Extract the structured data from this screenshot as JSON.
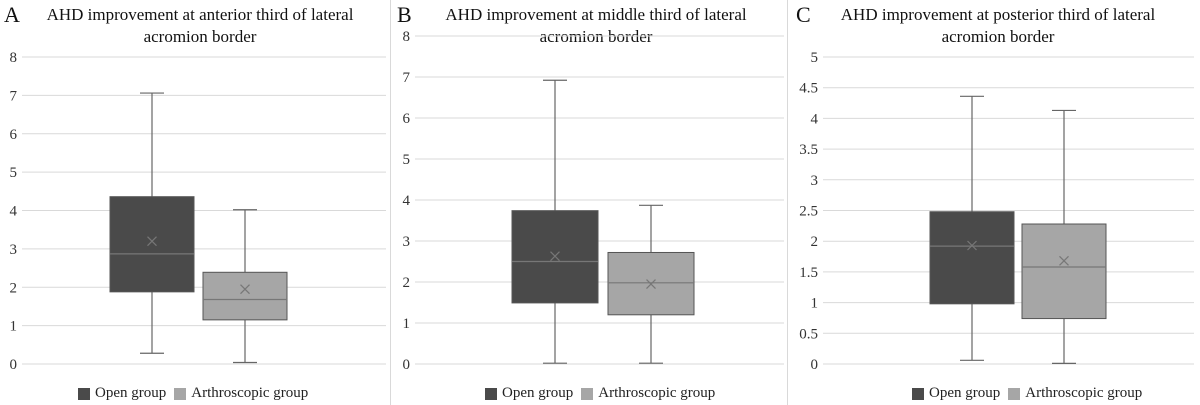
{
  "colors": {
    "open": "#4a4a4a",
    "arthroscopic": "#a6a6a6",
    "grid": "#d9d9d9",
    "whisker": "#666666",
    "mean_marker": "#777777"
  },
  "legend": {
    "open_label": "Open group",
    "arthroscopic_label": "Arthroscopic group"
  },
  "chart_data": [
    {
      "type": "box",
      "panel_label": "A",
      "title": "AHD improvement at anterior third of lateral acromion border",
      "title_lines": [
        "AHD improvement at anterior third of lateral",
        "acromion border"
      ],
      "ylim": [
        0,
        8
      ],
      "yticks": [
        0,
        1,
        2,
        3,
        4,
        5,
        6,
        7,
        8
      ],
      "grid": true,
      "legend_position": "bottom",
      "series": [
        {
          "name": "Open group",
          "min": 0.28,
          "q1": 1.88,
          "median": 2.87,
          "q3": 4.36,
          "max": 7.06,
          "mean": 3.2
        },
        {
          "name": "Arthroscopic group",
          "min": 0.04,
          "q1": 1.15,
          "median": 1.68,
          "q3": 2.39,
          "max": 4.02,
          "mean": 1.95
        }
      ]
    },
    {
      "type": "box",
      "panel_label": "B",
      "title": "AHD improvement at middle third of lateral acromion border",
      "title_lines": [
        "AHD improvement at middle third of lateral",
        "acromion border"
      ],
      "ylim": [
        0,
        8
      ],
      "yticks": [
        0,
        1,
        2,
        3,
        4,
        5,
        6,
        7,
        8
      ],
      "grid": true,
      "legend_position": "bottom",
      "series": [
        {
          "name": "Open group",
          "min": 0.02,
          "q1": 1.49,
          "median": 2.5,
          "q3": 3.74,
          "max": 6.92,
          "mean": 2.63
        },
        {
          "name": "Arthroscopic group",
          "min": 0.02,
          "q1": 1.2,
          "median": 1.98,
          "q3": 2.72,
          "max": 3.87,
          "mean": 1.95
        }
      ]
    },
    {
      "type": "box",
      "panel_label": "C",
      "title": "AHD improvement at posterior third of lateral acromion border",
      "title_lines": [
        "AHD improvement at posterior third of lateral",
        "acromion border"
      ],
      "ylim": [
        0,
        5
      ],
      "yticks": [
        0,
        0.5,
        1,
        1.5,
        2,
        2.5,
        3,
        3.5,
        4,
        4.5,
        5
      ],
      "grid": true,
      "legend_position": "bottom",
      "series": [
        {
          "name": "Open group",
          "min": 0.06,
          "q1": 0.98,
          "median": 1.92,
          "q3": 2.48,
          "max": 4.36,
          "mean": 1.93
        },
        {
          "name": "Arthroscopic group",
          "min": 0.01,
          "q1": 0.74,
          "median": 1.58,
          "q3": 2.28,
          "max": 4.13,
          "mean": 1.68
        }
      ]
    }
  ]
}
